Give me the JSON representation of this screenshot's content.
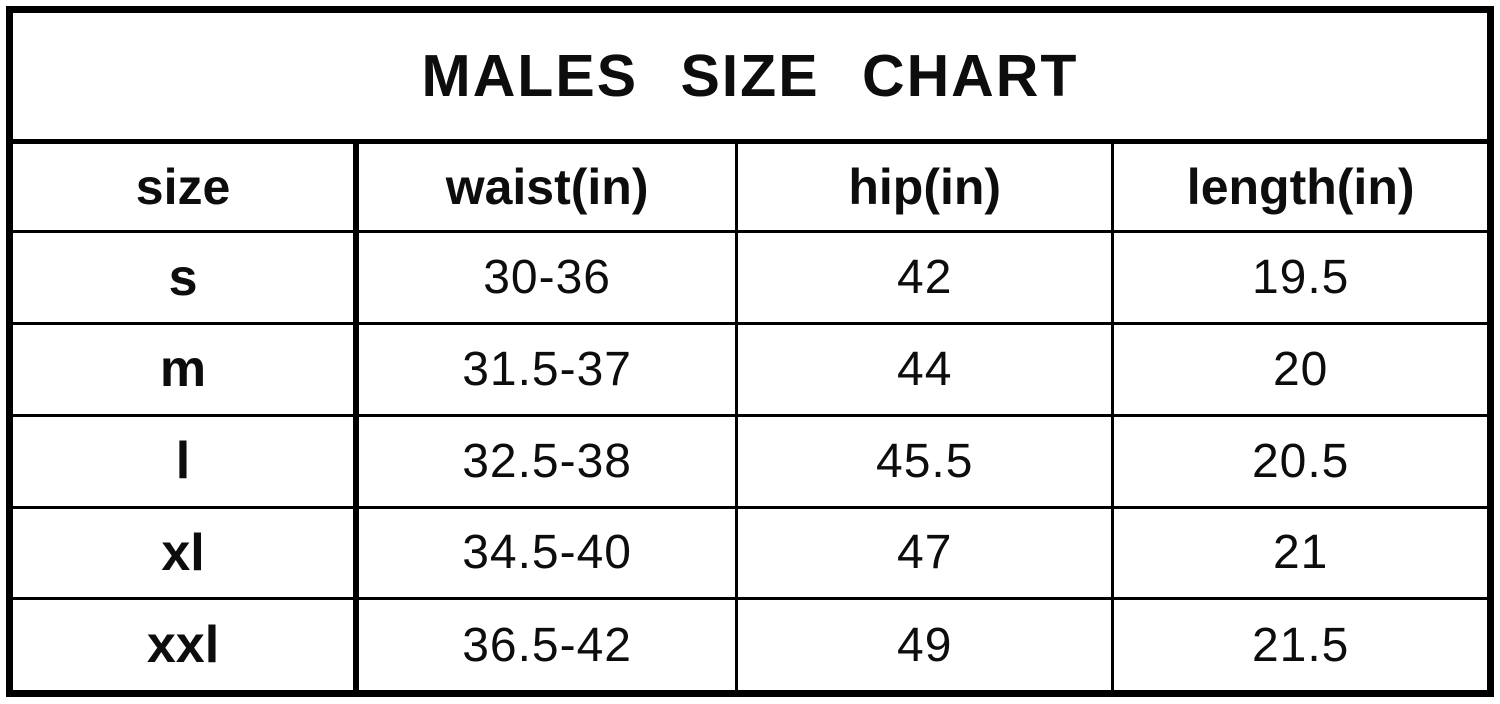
{
  "page": {
    "background_color": "#ffffff",
    "border_color": "#000000",
    "text_color": "#0d0d0d"
  },
  "table": {
    "title": "MALES SIZE CHART",
    "columns": [
      "size",
      "waist(in)",
      "hip(in)",
      "length(in)"
    ],
    "rows": [
      [
        "s",
        "30-36",
        "42",
        "19.5"
      ],
      [
        "m",
        "31.5-37",
        "44",
        "20"
      ],
      [
        "l",
        "32.5-38",
        "45.5",
        "20.5"
      ],
      [
        "xl",
        "34.5-40",
        "47",
        "21"
      ],
      [
        "xxl",
        "36.5-42",
        "49",
        "21.5"
      ]
    ]
  },
  "chart_data": {
    "type": "table",
    "title": "MALES SIZE CHART",
    "columns": [
      "size",
      "waist(in)",
      "hip(in)",
      "length(in)"
    ],
    "rows": [
      {
        "size": "s",
        "waist_in": "30-36",
        "hip_in": 42,
        "length_in": 19.5
      },
      {
        "size": "m",
        "waist_in": "31.5-37",
        "hip_in": 44,
        "length_in": 20
      },
      {
        "size": "l",
        "waist_in": "32.5-38",
        "hip_in": 45.5,
        "length_in": 20.5
      },
      {
        "size": "xl",
        "waist_in": "34.5-40",
        "hip_in": 47,
        "length_in": 21
      },
      {
        "size": "xxl",
        "waist_in": "36.5-42",
        "hip_in": 49,
        "length_in": 21.5
      }
    ]
  }
}
